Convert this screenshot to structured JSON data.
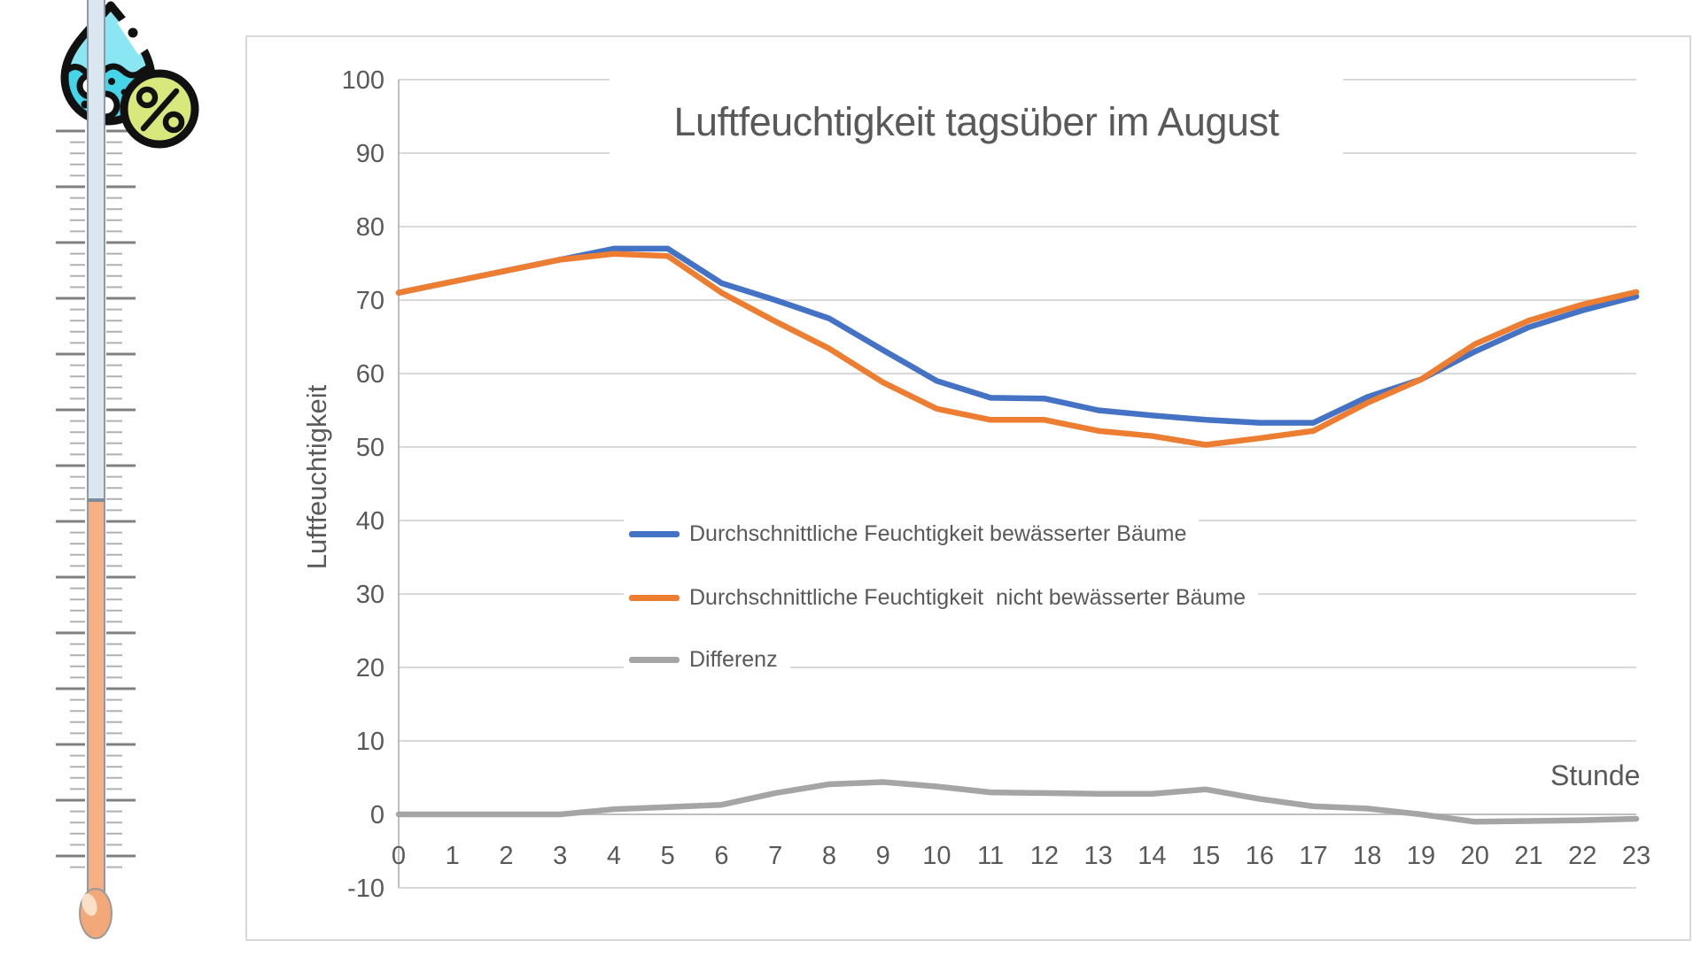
{
  "chart_data": {
    "type": "line",
    "title": "Luftfeuchtigkeit tagsüber im August",
    "xlabel": "Stunde",
    "ylabel": "Luftfeuchtigkeit",
    "x": [
      0,
      1,
      2,
      3,
      4,
      5,
      6,
      7,
      8,
      9,
      10,
      11,
      12,
      13,
      14,
      15,
      16,
      17,
      18,
      19,
      20,
      21,
      22,
      23
    ],
    "y_ticks": [
      100,
      90,
      80,
      70,
      60,
      50,
      40,
      30,
      20,
      10,
      0,
      -10
    ],
    "ylim": [
      -10,
      100
    ],
    "grid": "horizontal",
    "legend_position": "inside-center-left",
    "series": [
      {
        "name": "Durchschnittliche Feuchtigkeit bewässerter Bäume",
        "color": "#4472C4",
        "values": [
          71,
          72.5,
          74,
          75.5,
          77,
          77,
          72.3,
          70,
          67.5,
          63.2,
          59,
          56.7,
          56.6,
          55,
          54.3,
          53.7,
          53.3,
          53.3,
          56.8,
          59.2,
          63,
          66.3,
          68.6,
          70.5
        ]
      },
      {
        "name": "Durchschnittliche Feuchtigkeit  nicht bewässerter Bäume",
        "color": "#ED7D31",
        "values": [
          71,
          72.5,
          74,
          75.5,
          76.3,
          76,
          71,
          67.1,
          63.4,
          58.8,
          55.2,
          53.7,
          53.7,
          52.2,
          51.5,
          50.3,
          51.2,
          52.2,
          56,
          59.2,
          64,
          67.2,
          69.4,
          71.1
        ]
      },
      {
        "name": "Differenz",
        "color": "#A5A5A5",
        "values": [
          0,
          0,
          0,
          0,
          0.7,
          1,
          1.3,
          2.9,
          4.1,
          4.4,
          3.8,
          3,
          2.9,
          2.8,
          2.8,
          3.4,
          2.1,
          1.1,
          0.8,
          0,
          -1,
          -0.9,
          -0.8,
          -0.6
        ]
      }
    ]
  },
  "colors": {
    "gridline": "#D9D9D9",
    "axis_line": "#BFBFBF",
    "tick_text": "#595959",
    "panel_border": "#D9D9D9",
    "drop_light": "#8BE6F4",
    "drop_dark": "#45D4E8",
    "percent_circle": "#D8E87C",
    "tube_upper": "#DAE7F0",
    "tube_lower": "#F5B183",
    "bulb": "#F2A878"
  },
  "icons": {
    "thermometer": "thermometer-illustration",
    "drop": "water-drop-icon",
    "percent": "percent-icon"
  }
}
